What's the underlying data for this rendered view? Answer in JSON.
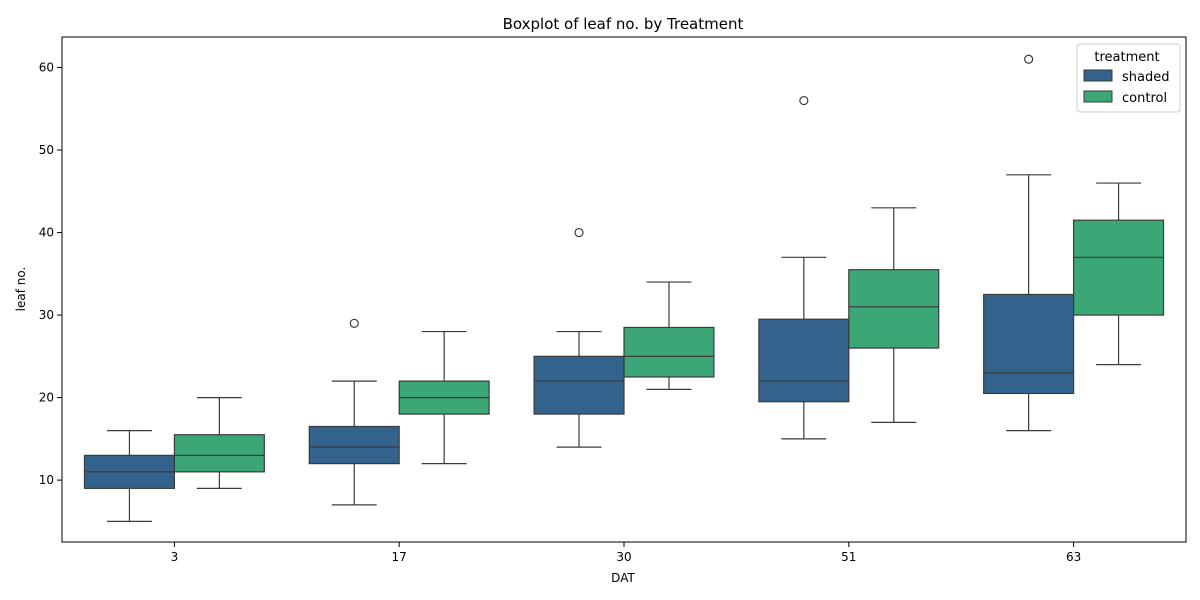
{
  "chart_data": {
    "type": "box",
    "title": "Boxplot of leaf no. by Treatment",
    "xlabel": "DAT",
    "ylabel": "leaf no.",
    "categories": [
      "3",
      "17",
      "30",
      "51",
      "63"
    ],
    "ylim": [
      2.5,
      63.7
    ],
    "yticks": [
      10,
      20,
      30,
      40,
      50,
      60
    ],
    "grid": false,
    "legend": {
      "title": "treatment",
      "placement": "top-right"
    },
    "series": [
      {
        "name": "shaded",
        "color": "#33638d",
        "boxes": [
          {
            "whisker_low": 5,
            "q1": 9,
            "median": 11,
            "q3": 13,
            "whisker_high": 16,
            "outliers": []
          },
          {
            "whisker_low": 7,
            "q1": 12,
            "median": 14,
            "q3": 16.5,
            "whisker_high": 22,
            "outliers": [
              29
            ]
          },
          {
            "whisker_low": 14,
            "q1": 18,
            "median": 22,
            "q3": 25,
            "whisker_high": 28,
            "outliers": [
              40
            ]
          },
          {
            "whisker_low": 15,
            "q1": 19.5,
            "median": 22,
            "q3": 29.5,
            "whisker_high": 37,
            "outliers": [
              56
            ]
          },
          {
            "whisker_low": 16,
            "q1": 20.5,
            "median": 23,
            "q3": 32.5,
            "whisker_high": 47,
            "outliers": [
              61
            ]
          }
        ]
      },
      {
        "name": "control",
        "color": "#3ba776",
        "boxes": [
          {
            "whisker_low": 9,
            "q1": 11,
            "median": 13,
            "q3": 15.5,
            "whisker_high": 20,
            "outliers": []
          },
          {
            "whisker_low": 12,
            "q1": 18,
            "median": 20,
            "q3": 22,
            "whisker_high": 28,
            "outliers": []
          },
          {
            "whisker_low": 21,
            "q1": 22.5,
            "median": 25,
            "q3": 28.5,
            "whisker_high": 34,
            "outliers": []
          },
          {
            "whisker_low": 17,
            "q1": 26,
            "median": 31,
            "q3": 35.5,
            "whisker_high": 43,
            "outliers": []
          },
          {
            "whisker_low": 24,
            "q1": 30,
            "median": 37,
            "q3": 41.5,
            "whisker_high": 46,
            "outliers": []
          }
        ]
      }
    ]
  }
}
